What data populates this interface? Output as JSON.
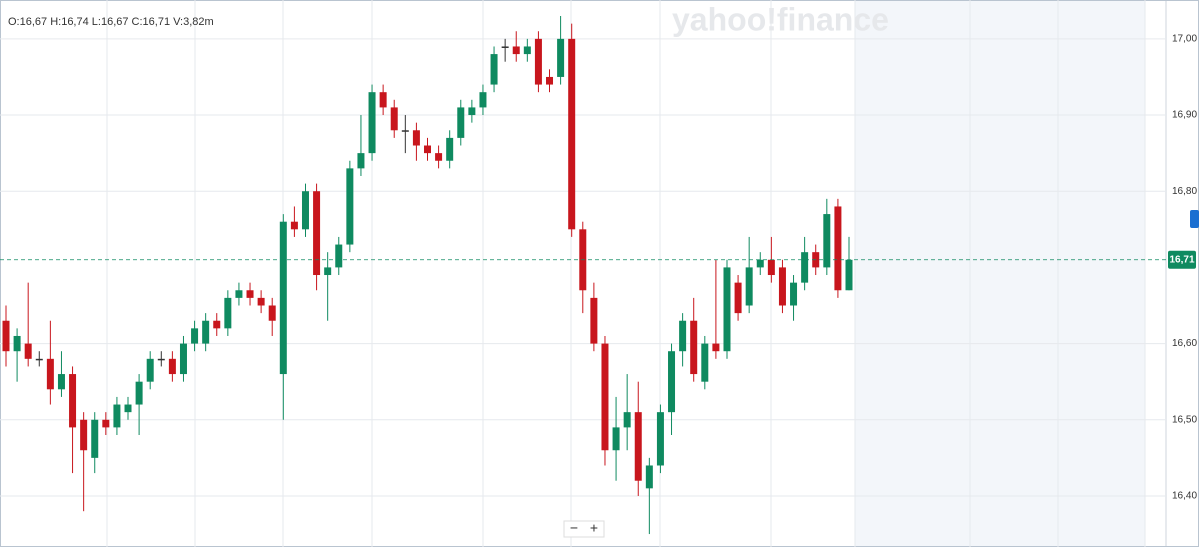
{
  "chart_data": {
    "type": "candlestick",
    "header": "O:16,67 H:16,74 L:16,67 C:16,71 V:3,82m",
    "logo": "yahoo!finance",
    "zoom_out": "−",
    "zoom_in": "+",
    "up_color": "#0f8a60",
    "down_color": "#c8161d",
    "ylim": [
      16.333,
      17.051
    ],
    "yticks": [
      {
        "value": 17.0,
        "label": "17,00"
      },
      {
        "value": 16.9,
        "label": "16,90"
      },
      {
        "value": 16.8,
        "label": "16,80"
      },
      {
        "value": 16.6,
        "label": "16,60"
      },
      {
        "value": 16.5,
        "label": "16,50"
      },
      {
        "value": 16.4,
        "label": "16,40"
      }
    ],
    "last_price": {
      "value": 16.71,
      "label": "16,71"
    },
    "grid": true,
    "open": [
      16.63,
      16.59,
      16.6,
      16.58,
      16.58,
      16.54,
      16.56,
      16.5,
      16.45,
      16.5,
      16.49,
      16.51,
      16.52,
      16.55,
      16.58,
      16.58,
      16.56,
      16.6,
      16.6,
      16.63,
      16.62,
      16.66,
      16.67,
      16.66,
      16.65,
      16.56,
      16.76,
      16.75,
      16.8,
      16.69,
      16.7,
      16.73,
      16.83,
      16.85,
      16.93,
      16.91,
      16.88,
      16.88,
      16.86,
      16.85,
      16.84,
      16.87,
      16.9,
      16.91,
      16.94,
      16.99,
      16.99,
      16.98,
      17.0,
      16.95,
      16.95,
      17.0,
      16.75,
      16.66,
      16.6,
      16.46,
      16.49,
      16.51,
      16.41,
      16.44,
      16.51,
      16.59,
      16.63,
      16.55,
      16.6,
      16.59,
      16.68,
      16.65,
      16.7,
      16.71,
      16.7,
      16.65,
      16.68,
      16.72,
      16.7,
      16.78,
      16.67
    ],
    "high": [
      16.65,
      16.62,
      16.68,
      16.59,
      16.63,
      16.59,
      16.57,
      16.51,
      16.51,
      16.51,
      16.53,
      16.53,
      16.56,
      16.59,
      16.59,
      16.59,
      16.61,
      16.63,
      16.64,
      16.64,
      16.67,
      16.68,
      16.68,
      16.67,
      16.66,
      16.77,
      16.78,
      16.81,
      16.81,
      16.72,
      16.74,
      16.84,
      16.9,
      16.94,
      16.94,
      16.92,
      16.9,
      16.89,
      16.87,
      16.86,
      16.88,
      16.92,
      16.92,
      16.94,
      16.99,
      17.0,
      17.01,
      17.0,
      17.01,
      16.96,
      17.03,
      17.02,
      16.76,
      16.68,
      16.61,
      16.53,
      16.56,
      16.55,
      16.45,
      16.52,
      16.6,
      16.64,
      16.66,
      16.61,
      16.71,
      16.71,
      16.69,
      16.74,
      16.72,
      16.74,
      16.71,
      16.69,
      16.74,
      16.73,
      16.79,
      16.79,
      16.74
    ],
    "low": [
      16.57,
      16.55,
      16.57,
      16.57,
      16.52,
      16.53,
      16.43,
      16.38,
      16.43,
      16.48,
      16.48,
      16.5,
      16.48,
      16.54,
      16.57,
      16.55,
      16.55,
      16.59,
      16.59,
      16.61,
      16.61,
      16.65,
      16.65,
      16.64,
      16.61,
      16.5,
      16.74,
      16.74,
      16.67,
      16.63,
      16.69,
      16.72,
      16.82,
      16.84,
      16.9,
      16.87,
      16.85,
      16.84,
      16.84,
      16.83,
      16.83,
      16.86,
      16.89,
      16.9,
      16.93,
      16.97,
      16.97,
      16.97,
      16.93,
      16.93,
      16.94,
      16.74,
      16.64,
      16.59,
      16.44,
      16.42,
      16.46,
      16.4,
      16.35,
      16.43,
      16.48,
      16.57,
      16.55,
      16.54,
      16.58,
      16.58,
      16.63,
      16.64,
      16.69,
      16.68,
      16.64,
      16.63,
      16.67,
      16.69,
      16.69,
      16.66,
      16.67
    ],
    "close": [
      16.59,
      16.61,
      16.58,
      16.58,
      16.54,
      16.56,
      16.49,
      16.46,
      16.5,
      16.49,
      16.52,
      16.52,
      16.55,
      16.58,
      16.58,
      16.56,
      16.6,
      16.62,
      16.63,
      16.62,
      16.66,
      16.67,
      16.66,
      16.65,
      16.63,
      16.76,
      16.75,
      16.8,
      16.69,
      16.7,
      16.73,
      16.83,
      16.85,
      16.93,
      16.91,
      16.88,
      16.88,
      16.86,
      16.85,
      16.84,
      16.87,
      16.91,
      16.91,
      16.93,
      16.98,
      16.99,
      16.98,
      16.99,
      16.94,
      16.94,
      17.0,
      16.75,
      16.67,
      16.6,
      16.46,
      16.49,
      16.51,
      16.42,
      16.44,
      16.51,
      16.59,
      16.63,
      16.56,
      16.6,
      16.59,
      16.7,
      16.64,
      16.7,
      16.71,
      16.69,
      16.65,
      16.68,
      16.72,
      16.7,
      16.77,
      16.67,
      16.71
    ]
  }
}
